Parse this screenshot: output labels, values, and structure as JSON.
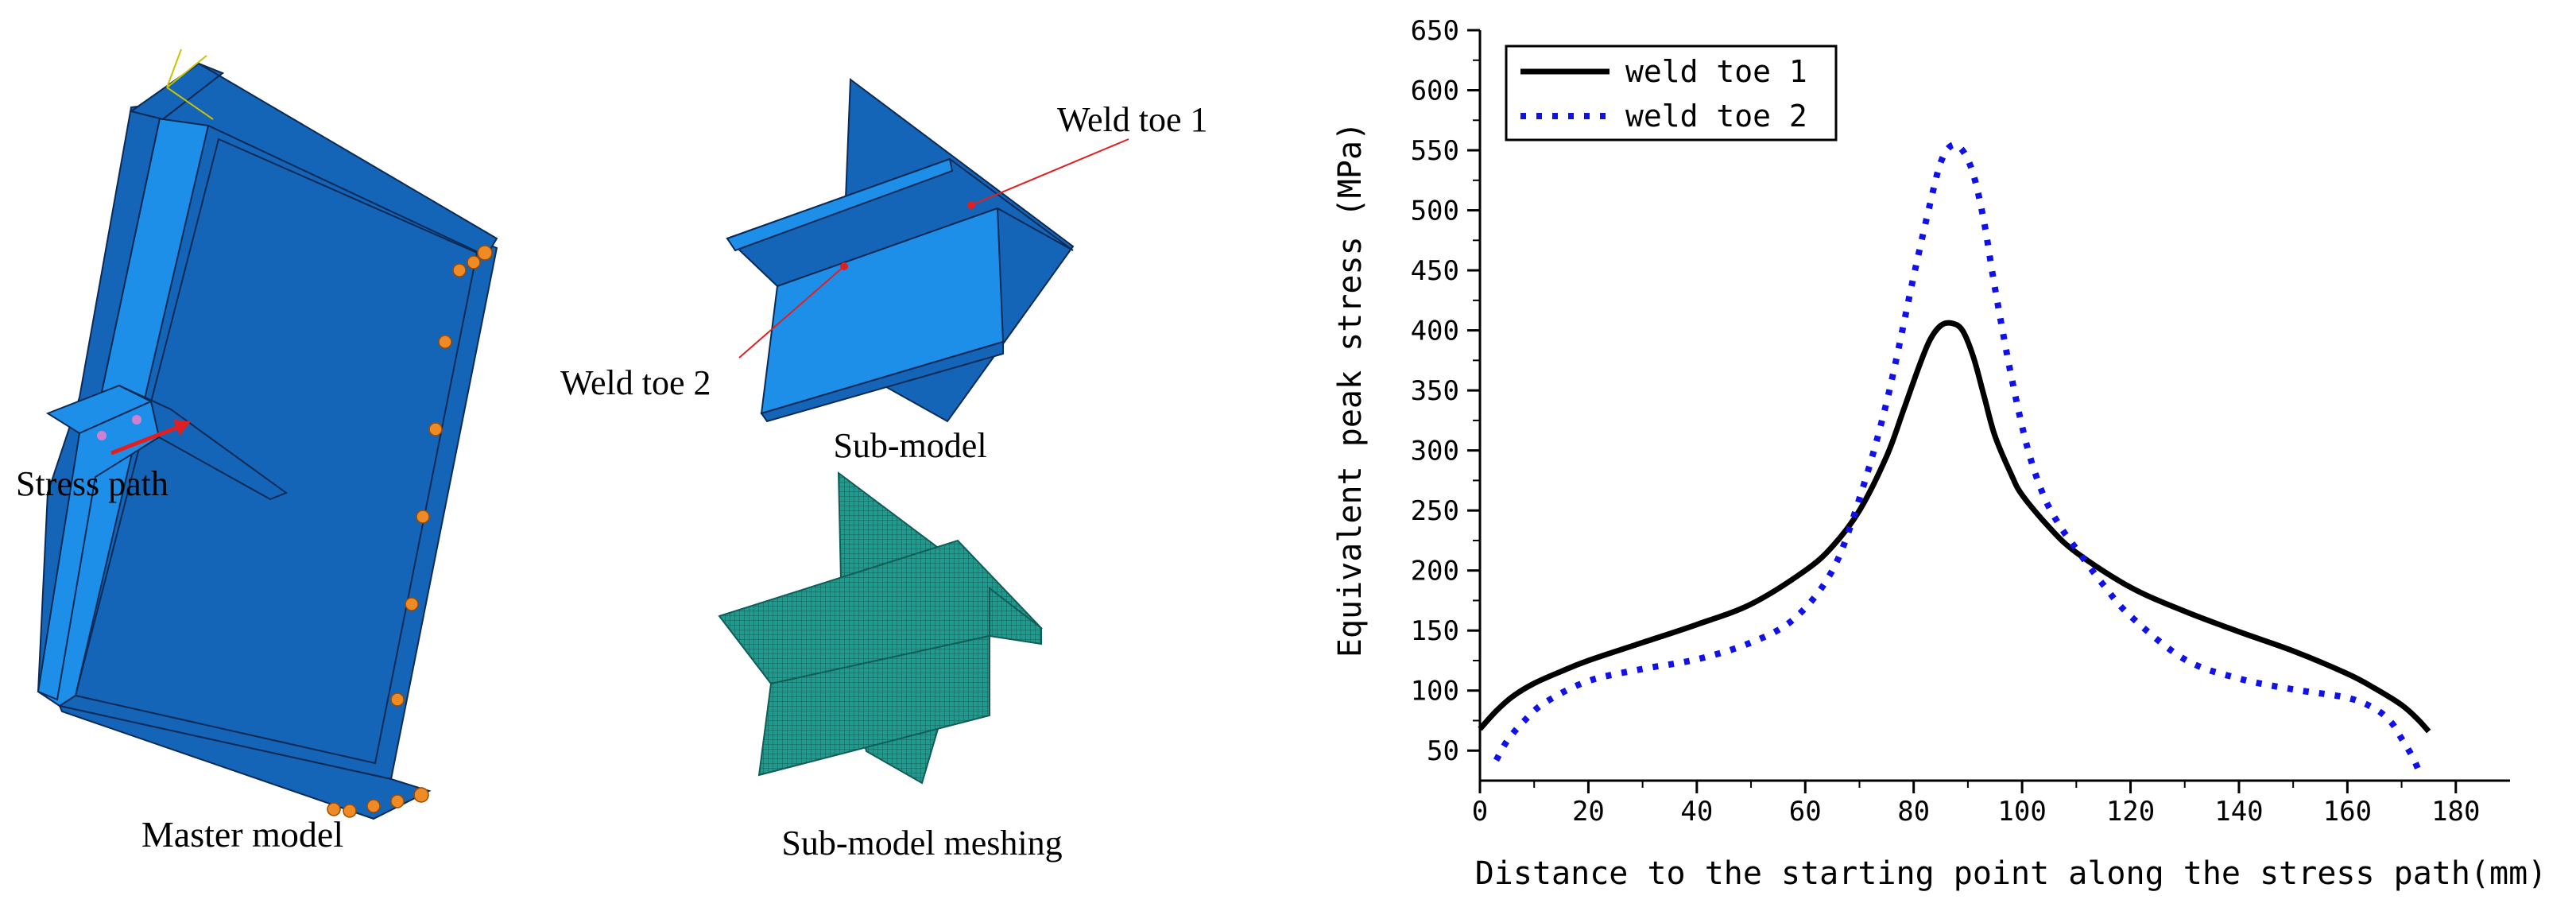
{
  "figure": {
    "labels": {
      "master_model": "Master model",
      "stress_path": "Stress path",
      "sub_model": "Sub-model",
      "sub_model_meshing": "Sub-model meshing",
      "weld_toe_1": "Weld toe 1",
      "weld_toe_2": "Weld toe 2"
    },
    "colors": {
      "model_dark": "#1464b8",
      "model_light": "#1e8fe8",
      "model_edge": "#0b2a55",
      "mesh": "#1f9a8e",
      "mesh_dark": "#0f5e57",
      "bc_marker": "#f08a24",
      "callout": "#e02020"
    }
  },
  "chart_data": {
    "type": "line",
    "title": "",
    "xlabel": "Distance to the starting point along the stress path(mm)",
    "ylabel": "Equivalent peak stress (MPa)",
    "xlim": [
      0,
      190
    ],
    "ylim": [
      25,
      650
    ],
    "x_ticks": [
      0,
      20,
      40,
      60,
      80,
      100,
      120,
      140,
      160,
      180
    ],
    "y_ticks": [
      50,
      100,
      150,
      200,
      250,
      300,
      350,
      400,
      450,
      500,
      550,
      600,
      650
    ],
    "legend_position": "top-left",
    "grid": false,
    "series": [
      {
        "name": "weld toe 1",
        "color": "#000000",
        "style": "solid",
        "x": [
          0,
          3,
          6,
          10,
          15,
          20,
          30,
          40,
          50,
          60,
          65,
          70,
          75,
          78,
          81,
          83,
          85,
          87,
          89,
          91,
          93,
          95,
          98,
          100,
          105,
          110,
          120,
          130,
          140,
          150,
          160,
          165,
          170,
          173,
          175
        ],
        "y": [
          68,
          83,
          95,
          106,
          116,
          125,
          140,
          155,
          172,
          200,
          220,
          250,
          295,
          332,
          370,
          392,
          404,
          406,
          400,
          378,
          345,
          312,
          280,
          263,
          236,
          215,
          186,
          166,
          149,
          133,
          114,
          102,
          88,
          76,
          66
        ]
      },
      {
        "name": "weld toe 2",
        "color": "#1010e8",
        "style": "dotted",
        "x": [
          3,
          5,
          8,
          12,
          20,
          30,
          40,
          50,
          58,
          65,
          70,
          75,
          80,
          83,
          85,
          87,
          89,
          91,
          93,
          95,
          98,
          101,
          104,
          107,
          110,
          115,
          120,
          130,
          140,
          150,
          160,
          165,
          168,
          170,
          172,
          173
        ],
        "y": [
          42,
          58,
          74,
          90,
          108,
          118,
          126,
          140,
          160,
          200,
          260,
          340,
          445,
          505,
          540,
          554,
          550,
          530,
          490,
          435,
          362,
          302,
          262,
          237,
          218,
          188,
          162,
          126,
          110,
          101,
          94,
          85,
          74,
          60,
          45,
          35
        ]
      }
    ]
  }
}
